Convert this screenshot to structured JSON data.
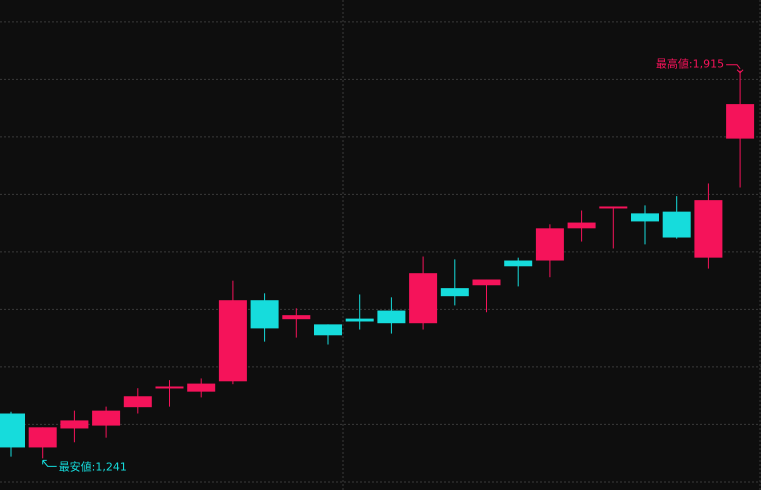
{
  "chart_data": {
    "type": "candlestick",
    "open": [
      1319,
      1260,
      1293,
      1298,
      1330,
      1363,
      1357,
      1375,
      1516,
      1483,
      1474,
      1484,
      1498,
      1476,
      1537,
      1542,
      1585,
      1585,
      1641,
      1676,
      1667,
      1670,
      1590,
      1797
    ],
    "high": [
      1322,
      1295,
      1324,
      1331,
      1363,
      1377,
      1380,
      1550,
      1528,
      1502,
      1474,
      1526,
      1521,
      1592,
      1587,
      1552,
      1590,
      1648,
      1672,
      1679,
      1681,
      1697,
      1719,
      1915
    ],
    "low": [
      1244,
      1241,
      1269,
      1277,
      1319,
      1331,
      1347,
      1370,
      1444,
      1451,
      1439,
      1465,
      1458,
      1465,
      1507,
      1495,
      1540,
      1556,
      1618,
      1606,
      1613,
      1623,
      1571,
      1712
    ],
    "close": [
      1260,
      1295,
      1307,
      1324,
      1349,
      1366,
      1371,
      1516,
      1467,
      1490,
      1455,
      1479,
      1476,
      1563,
      1523,
      1552,
      1575,
      1641,
      1651,
      1679,
      1653,
      1625,
      1690,
      1857
    ],
    "up_color": "#f5135a",
    "down_color": "#16dcdc",
    "ylim": [
      1186,
      2038
    ],
    "yticks": [
      1200,
      1300,
      1400,
      1500,
      1600,
      1700,
      1800,
      1900,
      2000
    ],
    "grid": true,
    "annotations": [
      {
        "text": "最高値:1,915",
        "value": 1915,
        "color": "#f5135a"
      },
      {
        "text": "最安値:1,241",
        "value": 1241,
        "color": "#16dcdc"
      }
    ]
  }
}
